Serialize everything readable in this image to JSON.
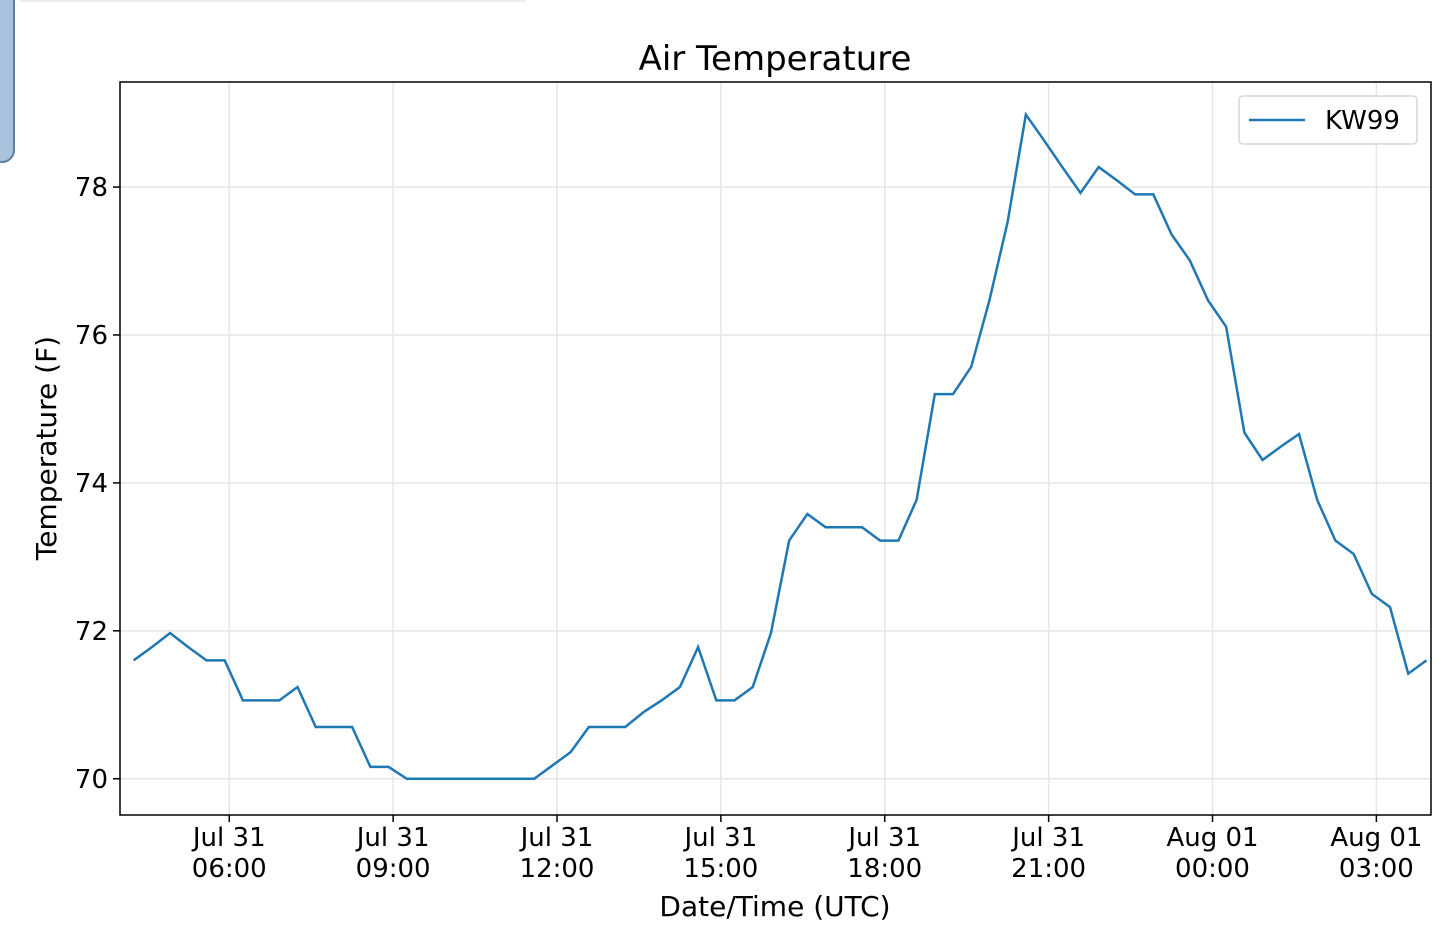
{
  "chart_data": {
    "type": "line",
    "title": "Air Temperature",
    "xlabel": "Date/Time (UTC)",
    "ylabel": "Temperature (F)",
    "x": [
      "Jul 31 04:15",
      "Jul 31 04:35",
      "Jul 31 04:55",
      "Jul 31 05:15",
      "Jul 31 05:35",
      "Jul 31 05:55",
      "Jul 31 06:15",
      "Jul 31 06:35",
      "Jul 31 06:55",
      "Jul 31 07:15",
      "Jul 31 07:35",
      "Jul 31 07:55",
      "Jul 31 08:15",
      "Jul 31 08:35",
      "Jul 31 08:55",
      "Jul 31 09:15",
      "Jul 31 09:35",
      "Jul 31 09:55",
      "Jul 31 10:15",
      "Jul 31 10:35",
      "Jul 31 10:55",
      "Jul 31 11:15",
      "Jul 31 11:35",
      "Jul 31 11:55",
      "Jul 31 12:15",
      "Jul 31 12:35",
      "Jul 31 12:55",
      "Jul 31 13:15",
      "Jul 31 13:35",
      "Jul 31 13:55",
      "Jul 31 14:15",
      "Jul 31 14:35",
      "Jul 31 14:55",
      "Jul 31 15:15",
      "Jul 31 15:35",
      "Jul 31 15:55",
      "Jul 31 16:15",
      "Jul 31 16:35",
      "Jul 31 16:55",
      "Jul 31 17:15",
      "Jul 31 17:35",
      "Jul 31 17:55",
      "Jul 31 18:15",
      "Jul 31 18:35",
      "Jul 31 18:55",
      "Jul 31 19:15",
      "Jul 31 19:35",
      "Jul 31 19:55",
      "Jul 31 20:15",
      "Jul 31 20:35",
      "Jul 31 20:55",
      "Jul 31 21:15",
      "Jul 31 21:35",
      "Jul 31 21:55",
      "Jul 31 22:15",
      "Jul 31 22:35",
      "Jul 31 22:55",
      "Jul 31 23:15",
      "Jul 31 23:35",
      "Jul 31 23:55",
      "Aug 01 00:15",
      "Aug 01 00:35",
      "Aug 01 00:55",
      "Aug 01 01:15",
      "Aug 01 01:35",
      "Aug 01 01:55",
      "Aug 01 02:15",
      "Aug 01 02:35",
      "Aug 01 02:55",
      "Aug 01 03:15",
      "Aug 01 03:35",
      "Aug 01 03:55"
    ],
    "series": [
      {
        "name": "KW99",
        "color": "#1f77b4",
        "values": [
          71.6,
          71.78,
          71.97,
          71.78,
          71.6,
          71.6,
          71.06,
          71.06,
          71.06,
          71.24,
          70.7,
          70.7,
          70.7,
          70.16,
          70.16,
          70,
          70,
          70,
          70,
          70,
          70,
          70,
          70,
          70.18,
          70.36,
          70.7,
          70.7,
          70.7,
          70.9,
          71.06,
          71.24,
          71.78,
          71.06,
          71.06,
          71.24,
          71.97,
          73.22,
          73.58,
          73.4,
          73.4,
          73.4,
          73.22,
          73.22,
          73.77,
          75.2,
          75.2,
          75.57,
          76.47,
          77.53,
          78.98,
          78.63,
          78.27,
          77.92,
          78.27,
          78.09,
          77.9,
          77.9,
          77.36,
          77.01,
          76.47,
          76.11,
          74.68,
          74.31,
          74.49,
          74.66,
          73.77,
          73.22,
          73.04,
          72.5,
          72.32,
          71.42,
          71.6
        ]
      }
    ],
    "xlim": [
      "Jul 31 04:00",
      "Aug 01 04:00"
    ],
    "xticks": [
      {
        "value": "Jul 31 06:00",
        "label": "Jul 31\n06:00"
      },
      {
        "value": "Jul 31 09:00",
        "label": "Jul 31\n09:00"
      },
      {
        "value": "Jul 31 12:00",
        "label": "Jul 31\n12:00"
      },
      {
        "value": "Jul 31 15:00",
        "label": "Jul 31\n15:00"
      },
      {
        "value": "Jul 31 18:00",
        "label": "Jul 31\n18:00"
      },
      {
        "value": "Jul 31 21:00",
        "label": "Jul 31\n21:00"
      },
      {
        "value": "Aug 01 00:00",
        "label": "Aug 01\n00:00"
      },
      {
        "value": "Aug 01 03:00",
        "label": "Aug 01\n03:00"
      }
    ],
    "ylim": [
      69.51,
      79.42
    ],
    "yticks": [
      70,
      72,
      74,
      76,
      78
    ],
    "grid": true,
    "legend": "upper right"
  }
}
